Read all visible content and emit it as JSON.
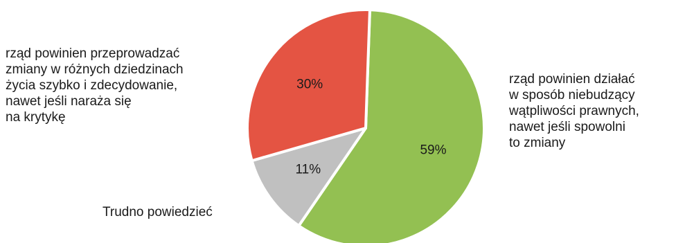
{
  "chart_data": {
    "type": "pie",
    "slices": [
      {
        "name": "rząd powinien działać\nw sposób niebudzący\nwątpliwości prawnych,\nnawet jeśli spowolni\nto zmiany",
        "value": 59,
        "label": "59%",
        "color": "#93c052"
      },
      {
        "name": "Trudno powiedzieć",
        "value": 11,
        "label": "11%",
        "color": "#c0c0c0"
      },
      {
        "name": "rząd powinien przeprowadzać\nzmiany w różnych dziedzinach\nżycia szybko i zdecydowanie,\nnawet jeśli naraża się\nna krytykę",
        "value": 30,
        "label": "30%",
        "color": "#e45443"
      }
    ],
    "start_angle_deg": 2,
    "direction": "clockwise",
    "slice_border_color": "#ffffff",
    "legend": "none"
  }
}
